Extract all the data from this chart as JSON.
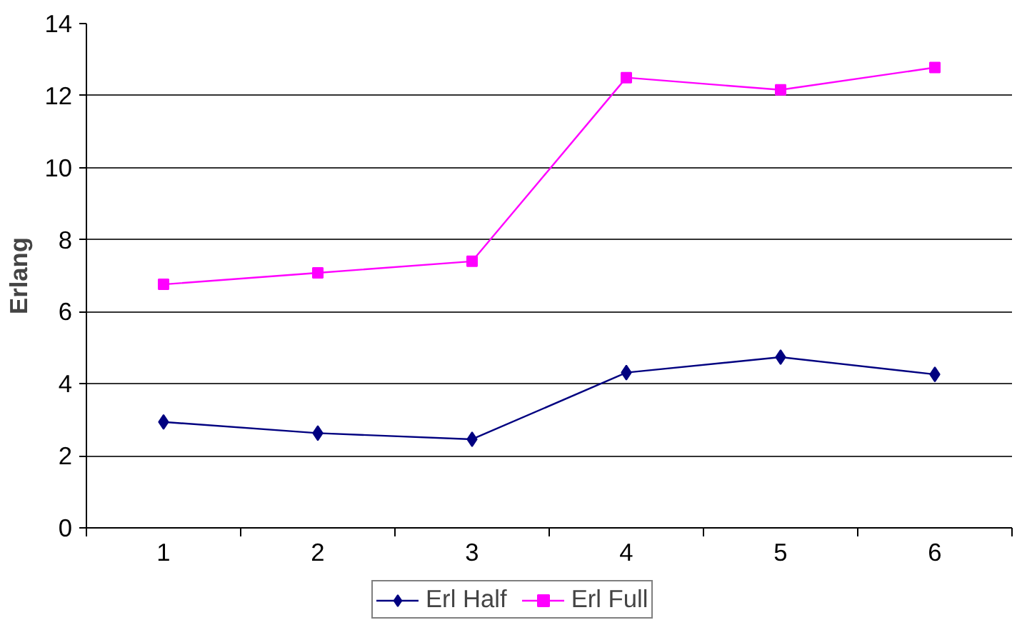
{
  "chart_data": {
    "type": "line",
    "ylabel": "Erlang",
    "categories": [
      "1",
      "2",
      "3",
      "4",
      "5",
      "6"
    ],
    "series": [
      {
        "name": "Erl Half",
        "color": "#000080",
        "marker": "diamond",
        "values": [
          2.94,
          2.63,
          2.46,
          4.31,
          4.74,
          4.26
        ]
      },
      {
        "name": "Erl Full",
        "color": "#ff00ff",
        "marker": "square",
        "values": [
          6.76,
          7.08,
          7.4,
          12.5,
          12.16,
          12.78
        ]
      }
    ],
    "ylim": [
      0,
      14
    ],
    "yticks": [
      0,
      2,
      4,
      6,
      8,
      10,
      12,
      14
    ],
    "grid": "y",
    "legend": "bottom",
    "line_style": "solid"
  }
}
